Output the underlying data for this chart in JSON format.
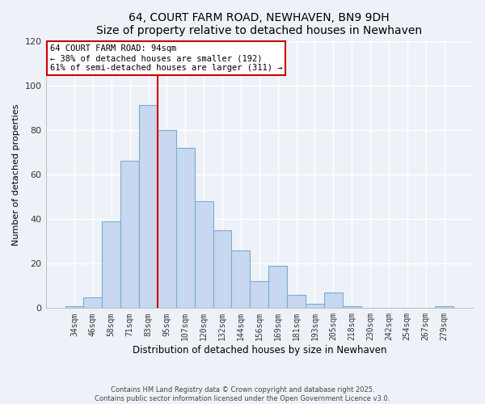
{
  "title": "64, COURT FARM ROAD, NEWHAVEN, BN9 9DH",
  "subtitle": "Size of property relative to detached houses in Newhaven",
  "xlabel": "Distribution of detached houses by size in Newhaven",
  "ylabel": "Number of detached properties",
  "bar_labels": [
    "34sqm",
    "46sqm",
    "58sqm",
    "71sqm",
    "83sqm",
    "95sqm",
    "107sqm",
    "120sqm",
    "132sqm",
    "144sqm",
    "156sqm",
    "169sqm",
    "181sqm",
    "193sqm",
    "205sqm",
    "218sqm",
    "230sqm",
    "242sqm",
    "254sqm",
    "267sqm",
    "279sqm"
  ],
  "bar_values": [
    1,
    5,
    39,
    66,
    91,
    80,
    72,
    48,
    35,
    26,
    12,
    19,
    6,
    2,
    7,
    1,
    0,
    0,
    0,
    0,
    1
  ],
  "bar_color": "#c8d8f0",
  "bar_edge_color": "#7aadd0",
  "vline_color": "#cc0000",
  "vline_index": 4,
  "ylim": [
    0,
    120
  ],
  "yticks": [
    0,
    20,
    40,
    60,
    80,
    100,
    120
  ],
  "annotation_title": "64 COURT FARM ROAD: 94sqm",
  "annotation_line1": "← 38% of detached houses are smaller (192)",
  "annotation_line2": "61% of semi-detached houses are larger (311) →",
  "annotation_box_color": "#ffffff",
  "annotation_box_edge_color": "#cc0000",
  "footer_line1": "Contains HM Land Registry data © Crown copyright and database right 2025.",
  "footer_line2": "Contains public sector information licensed under the Open Government Licence v3.0.",
  "background_color": "#eef2f8",
  "grid_color": "#ffffff"
}
